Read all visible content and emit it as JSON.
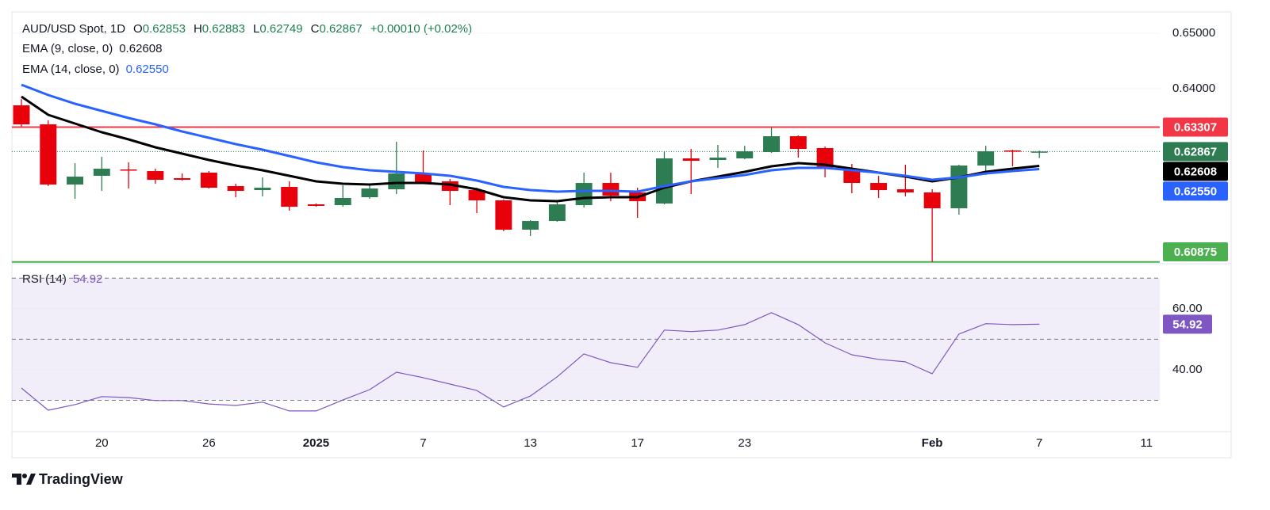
{
  "chart_data": {
    "type": "candlestick",
    "title": "AUD/USD Spot, 1D",
    "ohlc_labels": [
      "O",
      "H",
      "L",
      "C"
    ],
    "change": "+0.00010 (+0.02%)",
    "categories": [
      null,
      null,
      null,
      "20",
      null,
      null,
      null,
      "26",
      null,
      null,
      null,
      "2025",
      null,
      null,
      null,
      "7",
      null,
      null,
      null,
      "13",
      null,
      null,
      null,
      "17",
      null,
      null,
      null,
      "23",
      null,
      null,
      null,
      null,
      null,
      null,
      "Feb",
      null,
      null,
      null,
      "7",
      null,
      null,
      null,
      "11"
    ],
    "candles": {
      "up_color": "#2e7d52",
      "down_color": "#e8000b",
      "open": [
        0.637,
        0.63357,
        0.62271,
        0.62429,
        0.62543,
        0.62514,
        0.62386,
        0.62486,
        0.62243,
        0.62171,
        0.62229,
        0.61914,
        0.619,
        0.62043,
        0.62186,
        0.62457,
        0.62329,
        0.62171,
        0.61986,
        0.61457,
        0.61614,
        0.619,
        0.623,
        0.62129,
        0.61929,
        0.62743,
        0.62714,
        0.62743,
        0.62857,
        0.63143,
        0.62929,
        0.62557,
        0.623,
        0.62186,
        0.62129,
        0.61843,
        0.62614,
        0.62886,
        0.62853,
        null,
        null,
        null,
        null
      ],
      "high": [
        0.63814,
        0.63429,
        0.62657,
        0.62771,
        0.62671,
        0.62557,
        0.62471,
        0.62514,
        0.62286,
        0.624,
        0.62329,
        0.61929,
        0.62257,
        0.62257,
        0.63043,
        0.62886,
        0.62371,
        0.62214,
        0.62,
        0.61629,
        0.61971,
        0.62486,
        0.62486,
        0.62214,
        0.62871,
        0.62914,
        0.62986,
        0.62971,
        0.633,
        0.63157,
        0.62957,
        0.62643,
        0.62429,
        0.62629,
        0.62186,
        0.62629,
        0.62971,
        0.629,
        0.62883,
        null,
        null,
        null,
        null
      ],
      "low": [
        0.63314,
        0.62243,
        0.62014,
        0.62157,
        0.622,
        0.62286,
        0.62343,
        0.622,
        0.62043,
        0.62057,
        0.618,
        0.61871,
        0.61871,
        0.62014,
        0.621,
        0.623,
        0.619,
        0.61757,
        0.61429,
        0.61343,
        0.616,
        0.61857,
        0.61971,
        0.61671,
        0.61914,
        0.621,
        0.62571,
        0.62729,
        0.62843,
        0.62757,
        0.624,
        0.62114,
        0.62029,
        0.62057,
        0.60875,
        0.61729,
        0.62443,
        0.626,
        0.62749,
        null,
        null,
        null,
        null
      ],
      "close": [
        0.63357,
        0.62271,
        0.62414,
        0.62557,
        0.62529,
        0.62357,
        0.62357,
        0.62214,
        0.62157,
        0.62214,
        0.61871,
        0.61886,
        0.62029,
        0.622,
        0.62471,
        0.62314,
        0.62157,
        0.61986,
        0.61457,
        0.61614,
        0.61914,
        0.623,
        0.62071,
        0.61971,
        0.62743,
        0.627,
        0.62757,
        0.62871,
        0.63143,
        0.62914,
        0.62571,
        0.623,
        0.62171,
        0.62129,
        0.61843,
        0.62614,
        0.62871,
        0.62871,
        0.62867,
        null,
        null,
        null,
        null
      ]
    },
    "series": [
      {
        "name": "EMA (9, close, 0)",
        "color": "#000000",
        "values": [
          0.63857,
          0.63529,
          0.63371,
          0.63214,
          0.63086,
          0.62943,
          0.62829,
          0.62714,
          0.62614,
          0.62529,
          0.62429,
          0.62329,
          0.62286,
          0.62271,
          0.623,
          0.623,
          0.62271,
          0.62186,
          0.62043,
          0.61986,
          0.61971,
          0.62029,
          0.62043,
          0.62043,
          0.62214,
          0.62329,
          0.62414,
          0.625,
          0.626,
          0.62657,
          0.62629,
          0.62557,
          0.62486,
          0.62414,
          0.62329,
          0.624,
          0.625,
          0.62557,
          0.62608,
          null,
          null,
          null,
          null
        ]
      },
      {
        "name": "EMA (14, close, 0)",
        "color": "#2962ff",
        "last_label": "0.62550",
        "values": [
          0.64071,
          0.63886,
          0.63729,
          0.636,
          0.63471,
          0.63357,
          0.63229,
          0.63114,
          0.63,
          0.629,
          0.62786,
          0.62671,
          0.62586,
          0.62529,
          0.625,
          0.62471,
          0.62429,
          0.62343,
          0.62229,
          0.62171,
          0.62143,
          0.62157,
          0.62157,
          0.62143,
          0.62243,
          0.62329,
          0.62386,
          0.62443,
          0.62529,
          0.62571,
          0.62571,
          0.62529,
          0.62486,
          0.62429,
          0.62357,
          0.624,
          0.62471,
          0.62514,
          0.6255,
          null,
          null,
          null,
          null
        ]
      }
    ],
    "hlines": [
      {
        "value": 0.63307,
        "color": "#f23645"
      },
      {
        "value": 0.60875,
        "color": "#4caf50"
      }
    ],
    "ylim": [
      0.60886,
      0.65386
    ],
    "yticks": [
      {
        "value": 0.65,
        "label": "0.65000"
      },
      {
        "value": 0.64,
        "label": "0.64000"
      }
    ],
    "grid": true,
    "rsi": {
      "name": "RSI (14)",
      "color": "#7e57c2",
      "values": [
        34.0,
        26.75,
        28.6,
        31.2,
        30.9,
        29.9,
        29.9,
        28.8,
        28.3,
        29.4,
        26.5,
        26.5,
        30.1,
        33.5,
        39.2,
        37.4,
        35.3,
        33.2,
        27.8,
        31.4,
        37.7,
        45.2,
        42.3,
        40.8,
        53.0,
        52.5,
        53.0,
        54.8,
        58.7,
        54.8,
        48.8,
        44.9,
        43.4,
        42.6,
        38.7,
        51.7,
        55.1,
        54.8,
        54.92,
        null,
        null,
        null,
        null
      ],
      "ylim": [
        20,
        75
      ],
      "yticks": [
        {
          "value": 60,
          "label": "60.00"
        },
        {
          "value": 40,
          "label": "40.00"
        }
      ],
      "levels": [
        70,
        50,
        30
      ]
    },
    "branding": "TradingView"
  }
}
